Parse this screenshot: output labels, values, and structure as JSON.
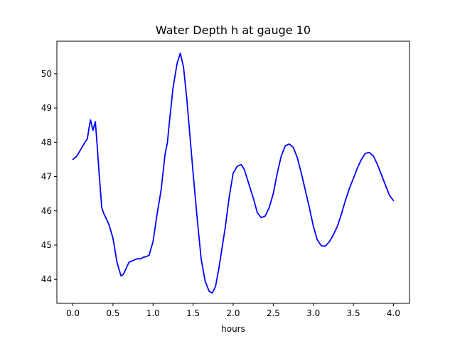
{
  "chart_data": {
    "type": "line",
    "title": "Water Depth h at gauge 10",
    "xlabel": "hours",
    "ylabel": "",
    "xlim": [
      -0.2,
      4.2
    ],
    "ylim": [
      43.3,
      50.95
    ],
    "xticks": [
      0.0,
      0.5,
      1.0,
      1.5,
      2.0,
      2.5,
      3.0,
      3.5,
      4.0
    ],
    "xtick_labels": [
      "0.0",
      "0.5",
      "1.0",
      "1.5",
      "2.0",
      "2.5",
      "3.0",
      "3.5",
      "4.0"
    ],
    "yticks": [
      44,
      45,
      46,
      47,
      48,
      49,
      50
    ],
    "ytick_labels": [
      "44",
      "45",
      "46",
      "47",
      "48",
      "49",
      "50"
    ],
    "grid": false,
    "series": [
      {
        "color": "#0000ff",
        "x": [
          0.0,
          0.05,
          0.1,
          0.15,
          0.18,
          0.2,
          0.22,
          0.25,
          0.28,
          0.3,
          0.33,
          0.36,
          0.38,
          0.4,
          0.45,
          0.5,
          0.55,
          0.6,
          0.63,
          0.66,
          0.7,
          0.75,
          0.8,
          0.82,
          0.85,
          0.88,
          0.9,
          0.95,
          1.0,
          1.05,
          1.1,
          1.15,
          1.18,
          1.2,
          1.25,
          1.3,
          1.34,
          1.38,
          1.42,
          1.46,
          1.5,
          1.55,
          1.6,
          1.65,
          1.7,
          1.74,
          1.78,
          1.82,
          1.86,
          1.9,
          1.95,
          2.0,
          2.05,
          2.1,
          2.14,
          2.18,
          2.22,
          2.26,
          2.3,
          2.35,
          2.4,
          2.45,
          2.5,
          2.55,
          2.6,
          2.65,
          2.7,
          2.75,
          2.8,
          2.85,
          2.9,
          2.95,
          3.0,
          3.05,
          3.1,
          3.15,
          3.2,
          3.25,
          3.3,
          3.35,
          3.4,
          3.45,
          3.5,
          3.55,
          3.6,
          3.65,
          3.7,
          3.75,
          3.8,
          3.85,
          3.9,
          3.95,
          4.0
        ],
        "y": [
          47.5,
          47.6,
          47.8,
          48.0,
          48.1,
          48.4,
          48.65,
          48.35,
          48.6,
          48.0,
          47.0,
          46.1,
          45.95,
          45.85,
          45.6,
          45.2,
          44.5,
          44.1,
          44.15,
          44.3,
          44.5,
          44.55,
          44.6,
          44.6,
          44.6,
          44.65,
          44.65,
          44.7,
          45.1,
          45.9,
          46.6,
          47.65,
          48.0,
          48.5,
          49.6,
          50.3,
          50.6,
          50.2,
          49.3,
          48.2,
          47.1,
          45.8,
          44.6,
          43.95,
          43.65,
          43.6,
          43.8,
          44.3,
          44.9,
          45.5,
          46.4,
          47.1,
          47.3,
          47.35,
          47.2,
          46.9,
          46.6,
          46.3,
          45.95,
          45.8,
          45.85,
          46.1,
          46.5,
          47.1,
          47.6,
          47.9,
          47.95,
          47.85,
          47.55,
          47.1,
          46.6,
          46.1,
          45.55,
          45.15,
          44.98,
          44.97,
          45.1,
          45.3,
          45.55,
          45.9,
          46.3,
          46.65,
          46.95,
          47.25,
          47.5,
          47.68,
          47.7,
          47.6,
          47.35,
          47.05,
          46.75,
          46.45,
          46.3
        ]
      }
    ]
  }
}
